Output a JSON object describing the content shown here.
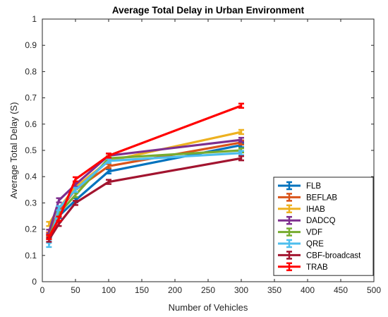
{
  "chart_data": {
    "type": "line",
    "title": "Average Total Delay in Urban Environment",
    "xlabel": "Number of Vehicles",
    "ylabel": "Average Total Delay (S)",
    "xlim": [
      0,
      500
    ],
    "ylim": [
      0,
      1
    ],
    "xticks": [
      "0",
      "50",
      "100",
      "150",
      "200",
      "250",
      "300",
      "350",
      "400",
      "450",
      "500"
    ],
    "yticks": [
      "0",
      "0.1",
      "0.2",
      "0.3",
      "0.4",
      "0.5",
      "0.6",
      "0.7",
      "0.8",
      "0.9",
      "1"
    ],
    "grid": false,
    "legend_position": "bottom-right",
    "error_bars": true,
    "x": [
      10,
      25,
      50,
      100,
      300
    ],
    "series": [
      {
        "name": "FLB",
        "color": "#0072BD",
        "values": [
          0.17,
          0.25,
          0.31,
          0.42,
          0.52
        ]
      },
      {
        "name": "BEFLAB",
        "color": "#D95319",
        "values": [
          0.18,
          0.27,
          0.35,
          0.44,
          0.53
        ]
      },
      {
        "name": "IHAB",
        "color": "#EDB120",
        "values": [
          0.22,
          0.28,
          0.36,
          0.46,
          0.57
        ]
      },
      {
        "name": "DADCQ",
        "color": "#7E2F8E",
        "values": [
          0.19,
          0.31,
          0.37,
          0.48,
          0.54
        ]
      },
      {
        "name": "VDF",
        "color": "#77AC30",
        "values": [
          0.17,
          0.26,
          0.33,
          0.47,
          0.5
        ]
      },
      {
        "name": "QRE",
        "color": "#4DBEEE",
        "values": [
          0.14,
          0.28,
          0.35,
          0.46,
          0.49
        ]
      },
      {
        "name": "CBF-broadcast",
        "color": "#A2142F",
        "values": [
          0.16,
          0.22,
          0.3,
          0.38,
          0.47
        ]
      },
      {
        "name": "TRAB",
        "color": "#FF0000",
        "values": [
          0.17,
          0.24,
          0.39,
          0.48,
          0.67
        ]
      }
    ]
  }
}
